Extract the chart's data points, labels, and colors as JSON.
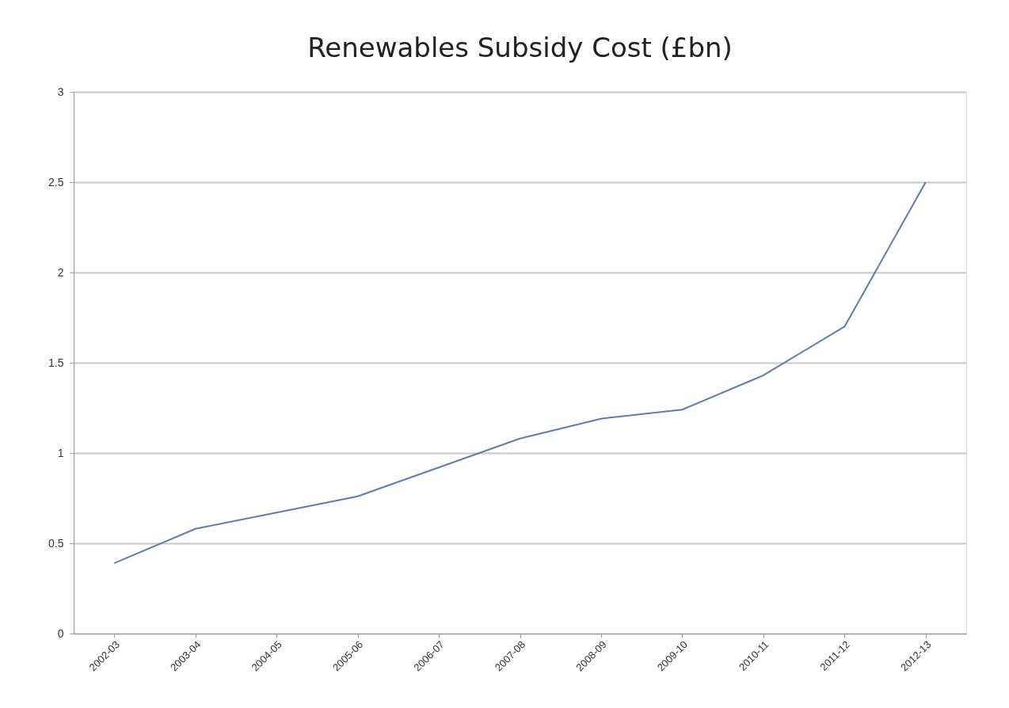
{
  "chart_data": {
    "type": "line",
    "title": "Renewables Subsidy Cost (£bn)",
    "categories": [
      "2002-03",
      "2003-04",
      "2004-05",
      "2005-06",
      "2006-07",
      "2007-08",
      "2008-09",
      "2009-10",
      "2010-11",
      "2011-12",
      "2012-13"
    ],
    "series": [
      {
        "color": "#5b7db1",
        "values": [
          0.39,
          0.58,
          0.67,
          0.76,
          0.92,
          1.08,
          1.19,
          1.24,
          1.43,
          1.7,
          2.5
        ]
      }
    ],
    "ylim": [
      0,
      3
    ],
    "yticks": [
      0,
      0.5,
      1,
      1.5,
      2,
      2.5,
      3
    ],
    "grid": "y",
    "marker": "none",
    "line_style": "solid"
  }
}
